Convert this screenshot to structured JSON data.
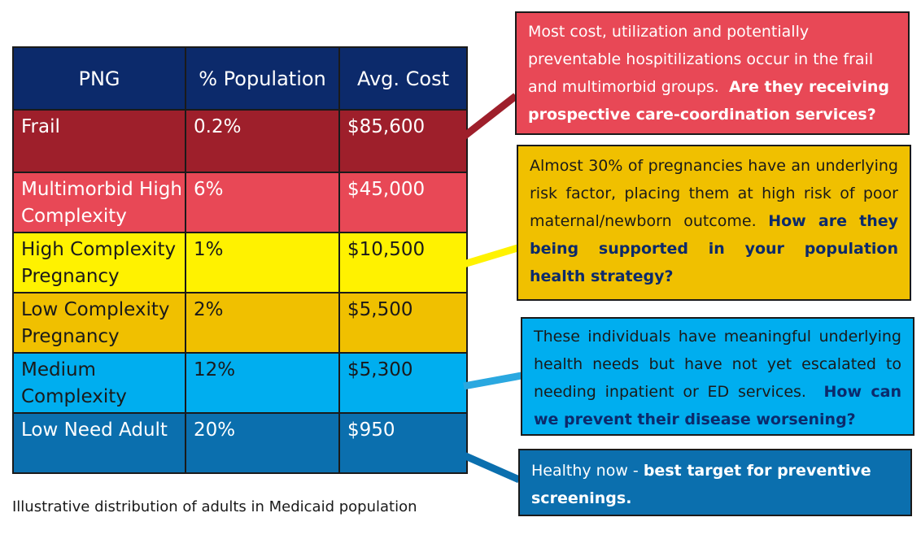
{
  "table": {
    "headers": [
      "PNG",
      "% Population",
      "Avg. Cost"
    ],
    "rows": [
      {
        "png": "Frail",
        "population": "0.2%",
        "cost": "$85,600",
        "color": "#9e1f2b"
      },
      {
        "png": "Multimorbid High Complexity",
        "population": "6%",
        "cost": "$45,000",
        "color": "#e84856"
      },
      {
        "png": "High Complexity Pregnancy",
        "population": "1%",
        "cost": "$10,500",
        "color": "#fff200"
      },
      {
        "png": "Low Complexity Pregnancy",
        "population": "2%",
        "cost": "$5,500",
        "color": "#f0c000"
      },
      {
        "png": "Medium Complexity",
        "population": "12%",
        "cost": "$5,300",
        "color": "#00aeef"
      },
      {
        "png": "Low Need Adult",
        "population": "20%",
        "cost": "$950",
        "color": "#0b6fae"
      }
    ]
  },
  "caption": "Illustrative distribution of adults in Medicaid population",
  "callouts": [
    {
      "text": "Most cost, utilization and potentially preventable hospitilizations occur in the frail and multimorbid groups.",
      "emphasis": "Are they receiving prospective care-coordination services?"
    },
    {
      "text": "Almost 30% of pregnancies have an underlying risk factor, placing them at high risk of poor maternal/newborn outcome.",
      "emphasis": "How are they being supported in your population health strategy?"
    },
    {
      "text": "These individuals have meaningful underlying health needs but have not yet escalated to needing inpatient or ED services.",
      "emphasis": "How can we prevent their disease worsening?"
    },
    {
      "text": "Healthy now -",
      "emphasis": "best target for preventive screenings."
    }
  ],
  "colors": {
    "header_navy": "#0c2a6b",
    "frail": "#9e1f2b",
    "multimorbid": "#e84856",
    "high_pregnancy": "#fff200",
    "low_pregnancy": "#f0c000",
    "medium": "#00aeef",
    "low_need": "#0b6fae"
  }
}
